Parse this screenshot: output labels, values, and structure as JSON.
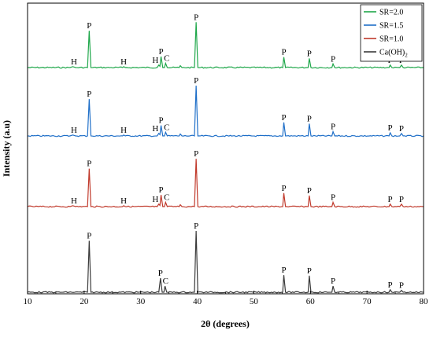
{
  "chart_data": {
    "type": "line",
    "xlabel": "2θ (degrees)",
    "ylabel": "Intensity (a.u)",
    "xlim": [
      10,
      80
    ],
    "xticks": [
      10,
      20,
      30,
      40,
      50,
      60,
      70,
      80
    ],
    "grid": false,
    "legend_position": "top-right",
    "peak_markers": {
      "P": "P",
      "H": "H",
      "C": "C"
    },
    "series": [
      {
        "name": "SR=2.0",
        "color": "#1fa74a",
        "baseline": 86,
        "points": [
          [
            10,
            0
          ],
          [
            17.5,
            0
          ],
          [
            18,
            1.5
          ],
          [
            18.5,
            0
          ],
          [
            20.6,
            0
          ],
          [
            20.9,
            60
          ],
          [
            21.2,
            0
          ],
          [
            26.8,
            0
          ],
          [
            27,
            1.5
          ],
          [
            27.3,
            0
          ],
          [
            32.9,
            0
          ],
          [
            33.2,
            4
          ],
          [
            33.4,
            2
          ],
          [
            33.6,
            18
          ],
          [
            33.9,
            0
          ],
          [
            34.2,
            0
          ],
          [
            34.4,
            7
          ],
          [
            34.7,
            0
          ],
          [
            36.8,
            0
          ],
          [
            37,
            3
          ],
          [
            37.3,
            0
          ],
          [
            39.5,
            0
          ],
          [
            39.8,
            74
          ],
          [
            40.1,
            0
          ],
          [
            55.1,
            0
          ],
          [
            55.3,
            17
          ],
          [
            55.6,
            0
          ],
          [
            59.6,
            0
          ],
          [
            59.8,
            15
          ],
          [
            60.1,
            0
          ],
          [
            63.8,
            0
          ],
          [
            64,
            6
          ],
          [
            64.3,
            0
          ],
          [
            73.9,
            0
          ],
          [
            74.1,
            4
          ],
          [
            74.4,
            0
          ],
          [
            75.8,
            0
          ],
          [
            76.1,
            4
          ],
          [
            76.4,
            0
          ],
          [
            80,
            0
          ]
        ],
        "labels": [
          {
            "text": "H",
            "x": 18.2,
            "height": 1.5
          },
          {
            "text": "P",
            "x": 20.9,
            "height": 60
          },
          {
            "text": "H",
            "x": 27.0,
            "height": 1.5
          },
          {
            "text": "H",
            "x": 32.6,
            "height": 4
          },
          {
            "text": "P",
            "x": 33.6,
            "height": 18
          },
          {
            "text": "C",
            "x": 34.6,
            "height": 7
          },
          {
            "text": "P",
            "x": 39.8,
            "height": 74
          },
          {
            "text": "P",
            "x": 55.3,
            "height": 17
          },
          {
            "text": "P",
            "x": 59.8,
            "height": 15
          },
          {
            "text": "P",
            "x": 64.0,
            "height": 6
          },
          {
            "text": "P",
            "x": 74.1,
            "height": 4
          },
          {
            "text": "P",
            "x": 76.1,
            "height": 4
          }
        ]
      },
      {
        "name": "SR=1.5",
        "color": "#1f6fc8",
        "baseline": 173,
        "points": [
          [
            10,
            0
          ],
          [
            17.5,
            0
          ],
          [
            18,
            1.5
          ],
          [
            18.5,
            0
          ],
          [
            20.6,
            0
          ],
          [
            20.9,
            60
          ],
          [
            21.2,
            0
          ],
          [
            26.8,
            0
          ],
          [
            27,
            1.5
          ],
          [
            27.3,
            0
          ],
          [
            32.9,
            0
          ],
          [
            33.2,
            4
          ],
          [
            33.4,
            2
          ],
          [
            33.6,
            17
          ],
          [
            33.9,
            0
          ],
          [
            34.2,
            0
          ],
          [
            34.4,
            6
          ],
          [
            34.7,
            0
          ],
          [
            36.8,
            0
          ],
          [
            37,
            3
          ],
          [
            37.3,
            0
          ],
          [
            39.5,
            0
          ],
          [
            39.8,
            82
          ],
          [
            40.1,
            0
          ],
          [
            55.1,
            0
          ],
          [
            55.3,
            22
          ],
          [
            55.6,
            0
          ],
          [
            59.6,
            0
          ],
          [
            59.8,
            20
          ],
          [
            60.1,
            0
          ],
          [
            63.8,
            0
          ],
          [
            64,
            7
          ],
          [
            64.3,
            0
          ],
          [
            73.9,
            0
          ],
          [
            74.1,
            5
          ],
          [
            74.4,
            0
          ],
          [
            75.8,
            0
          ],
          [
            76.1,
            4
          ],
          [
            76.4,
            0
          ],
          [
            80,
            0
          ]
        ],
        "labels": [
          {
            "text": "H",
            "x": 18.2,
            "height": 1.5
          },
          {
            "text": "P",
            "x": 20.9,
            "height": 60
          },
          {
            "text": "H",
            "x": 27.0,
            "height": 1.5
          },
          {
            "text": "H",
            "x": 32.6,
            "height": 4
          },
          {
            "text": "P",
            "x": 33.6,
            "height": 17
          },
          {
            "text": "C",
            "x": 34.6,
            "height": 6
          },
          {
            "text": "P",
            "x": 39.8,
            "height": 82
          },
          {
            "text": "P",
            "x": 55.3,
            "height": 22
          },
          {
            "text": "P",
            "x": 59.8,
            "height": 20
          },
          {
            "text": "P",
            "x": 64.0,
            "height": 7
          },
          {
            "text": "P",
            "x": 74.1,
            "height": 5
          },
          {
            "text": "P",
            "x": 76.1,
            "height": 4
          }
        ]
      },
      {
        "name": "SR=1.0",
        "color": "#c0392b",
        "baseline": 263,
        "points": [
          [
            10,
            0
          ],
          [
            17.5,
            0
          ],
          [
            18,
            1.5
          ],
          [
            18.5,
            0
          ],
          [
            20.6,
            0
          ],
          [
            20.9,
            62
          ],
          [
            21.2,
            0
          ],
          [
            26.8,
            0
          ],
          [
            27,
            1.5
          ],
          [
            27.3,
            0
          ],
          [
            32.9,
            0
          ],
          [
            33.2,
            4
          ],
          [
            33.4,
            2
          ],
          [
            33.6,
            19
          ],
          [
            33.9,
            0
          ],
          [
            34.2,
            0
          ],
          [
            34.4,
            7
          ],
          [
            34.7,
            0
          ],
          [
            36.8,
            0
          ],
          [
            37,
            3
          ],
          [
            37.3,
            0
          ],
          [
            39.5,
            0
          ],
          [
            39.8,
            78
          ],
          [
            40.1,
            0
          ],
          [
            55.1,
            0
          ],
          [
            55.3,
            22
          ],
          [
            55.6,
            0
          ],
          [
            59.6,
            0
          ],
          [
            59.8,
            18
          ],
          [
            60.1,
            0
          ],
          [
            63.8,
            0
          ],
          [
            64,
            7
          ],
          [
            64.3,
            0
          ],
          [
            73.9,
            0
          ],
          [
            74.1,
            4
          ],
          [
            74.4,
            0
          ],
          [
            75.8,
            0
          ],
          [
            76.1,
            4
          ],
          [
            76.4,
            0
          ],
          [
            80,
            0
          ]
        ],
        "labels": [
          {
            "text": "H",
            "x": 18.2,
            "height": 1.5
          },
          {
            "text": "P",
            "x": 20.9,
            "height": 62
          },
          {
            "text": "H",
            "x": 27.0,
            "height": 1.5
          },
          {
            "text": "H",
            "x": 32.6,
            "height": 4
          },
          {
            "text": "P",
            "x": 33.6,
            "height": 19
          },
          {
            "text": "C",
            "x": 34.6,
            "height": 7
          },
          {
            "text": "P",
            "x": 39.8,
            "height": 78
          },
          {
            "text": "P",
            "x": 55.3,
            "height": 22
          },
          {
            "text": "P",
            "x": 59.8,
            "height": 18
          },
          {
            "text": "P",
            "x": 64.0,
            "height": 7
          },
          {
            "text": "P",
            "x": 74.1,
            "height": 4
          },
          {
            "text": "P",
            "x": 76.1,
            "height": 4
          }
        ]
      },
      {
        "name": "Ca(OH)",
        "name_subscript": "2",
        "color": "#3a3a3a",
        "baseline": 372,
        "points": [
          [
            10,
            0
          ],
          [
            20.6,
            0
          ],
          [
            20.9,
            84
          ],
          [
            21.2,
            0
          ],
          [
            33.2,
            0
          ],
          [
            33.5,
            23
          ],
          [
            33.8,
            0
          ],
          [
            34.1,
            0
          ],
          [
            34.3,
            10
          ],
          [
            34.6,
            0
          ],
          [
            39.5,
            0
          ],
          [
            39.8,
            100
          ],
          [
            40.1,
            0
          ],
          [
            55.1,
            0
          ],
          [
            55.3,
            28
          ],
          [
            55.6,
            0
          ],
          [
            59.6,
            0
          ],
          [
            59.8,
            27
          ],
          [
            60.1,
            0
          ],
          [
            63.8,
            0
          ],
          [
            64,
            10
          ],
          [
            64.3,
            0
          ],
          [
            73.9,
            0
          ],
          [
            74.1,
            4
          ],
          [
            74.4,
            0
          ],
          [
            75.8,
            0
          ],
          [
            76.1,
            3
          ],
          [
            76.4,
            0
          ],
          [
            80,
            0
          ]
        ],
        "labels": [
          {
            "text": "P",
            "x": 20.9,
            "height": 84
          },
          {
            "text": "P",
            "x": 33.5,
            "height": 23
          },
          {
            "text": "C",
            "x": 34.4,
            "height": 10
          },
          {
            "text": "P",
            "x": 39.8,
            "height": 100
          },
          {
            "text": "P",
            "x": 55.3,
            "height": 28
          },
          {
            "text": "P",
            "x": 59.8,
            "height": 27
          },
          {
            "text": "P",
            "x": 64.0,
            "height": 10
          },
          {
            "text": "P",
            "x": 74.1,
            "height": 4
          },
          {
            "text": "P",
            "x": 76.1,
            "height": 3
          }
        ]
      }
    ]
  }
}
